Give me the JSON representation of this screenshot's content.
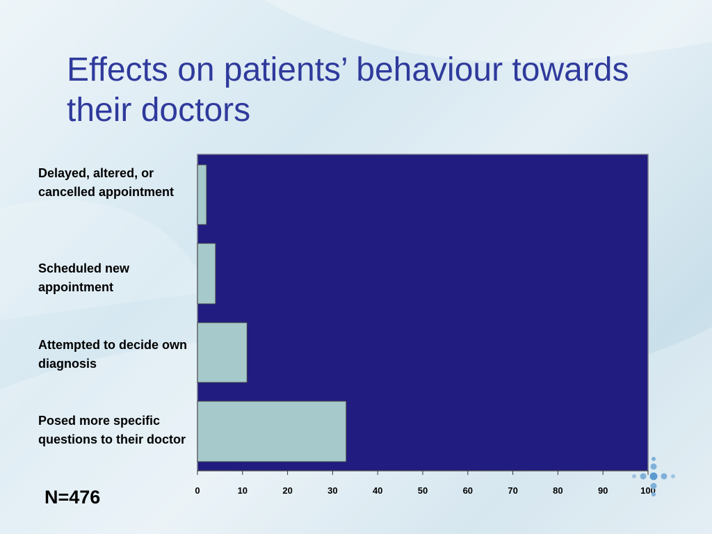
{
  "slide": {
    "title": "Effects on patients’ behaviour towards their doctors",
    "note": "N=476"
  },
  "colors": {
    "title": "#2f3a9c",
    "plot_background": "#201c80",
    "bar_fill": "#a6c9cb",
    "text": "#000000"
  },
  "chart_data": {
    "type": "bar",
    "orientation": "horizontal",
    "categories": [
      "Delayed, altered, or cancelled appointment",
      "Scheduled new appointment",
      "Attempted to decide own diagnosis",
      "Posed more specific questions to their doctor"
    ],
    "values": [
      2,
      4,
      11,
      33
    ],
    "xlim": [
      0,
      100
    ],
    "xticks": [
      "0",
      "10",
      "20",
      "30",
      "40",
      "50",
      "60",
      "70",
      "80",
      "90",
      "100"
    ],
    "xlabel": "",
    "ylabel": "",
    "title": "",
    "grid": false,
    "legend": "none"
  }
}
